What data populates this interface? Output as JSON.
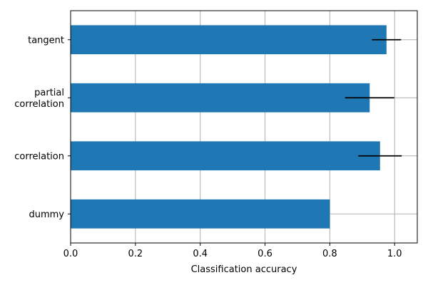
{
  "chart_data": {
    "type": "bar",
    "orientation": "horizontal",
    "title": "",
    "xlabel": "Classification accuracy",
    "ylabel": "",
    "categories": [
      "dummy",
      "correlation",
      "partial correlation",
      "tangent"
    ],
    "category_display": [
      [
        "dummy"
      ],
      [
        "correlation"
      ],
      [
        "partial",
        "correlation"
      ],
      [
        "tangent"
      ]
    ],
    "values": [
      0.8,
      0.955,
      0.923,
      0.975
    ],
    "error": [
      0.0,
      0.067,
      0.076,
      0.045
    ],
    "xlim": [
      0,
      1.07
    ],
    "xticks": [
      0.0,
      0.2,
      0.4,
      0.6,
      0.8,
      1.0
    ],
    "xtick_labels": [
      "0.0",
      "0.2",
      "0.4",
      "0.6",
      "0.8",
      "1.0"
    ],
    "grid": true,
    "colors": {
      "bar": "#1f77b4",
      "error": "#000000",
      "grid": "#b0b0b0",
      "axis": "#000000"
    }
  }
}
